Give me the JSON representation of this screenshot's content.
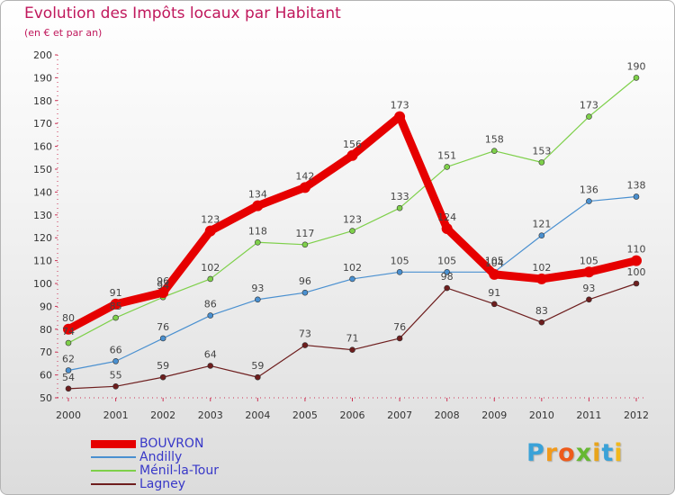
{
  "chart_data": {
    "type": "line",
    "title": "Evolution des Impôts locaux par Habitant",
    "subtitle": "(en € et par an)",
    "xlabel": "",
    "ylabel": "",
    "categories": [
      "2000",
      "2001",
      "2002",
      "2003",
      "2004",
      "2005",
      "2006",
      "2007",
      "2008",
      "2009",
      "2010",
      "2011",
      "2012"
    ],
    "ylim": [
      50,
      200
    ],
    "yticks": [
      50,
      60,
      70,
      80,
      90,
      100,
      110,
      120,
      130,
      140,
      150,
      160,
      170,
      180,
      190,
      200
    ],
    "grid": false,
    "legend_position": "bottom-left",
    "series": [
      {
        "name": "BOUVRON",
        "color": "#e60000",
        "emphasis": true,
        "values": [
          80,
          91,
          96,
          123,
          134,
          142,
          156,
          173,
          124,
          104,
          102,
          105,
          110
        ]
      },
      {
        "name": "Andilly",
        "color": "#4a90d0",
        "values": [
          62,
          66,
          76,
          86,
          93,
          96,
          102,
          105,
          105,
          105,
          121,
          136,
          138
        ]
      },
      {
        "name": "Ménil-la-Tour",
        "color": "#7ed04a",
        "values": [
          74,
          85,
          94,
          102,
          118,
          117,
          123,
          133,
          151,
          158,
          153,
          173,
          190
        ]
      },
      {
        "name": "Lagney",
        "color": "#6e1e1e",
        "values": [
          54,
          55,
          59,
          64,
          59,
          73,
          71,
          76,
          98,
          91,
          83,
          93,
          100
        ]
      }
    ]
  },
  "branding": {
    "letters": [
      "P",
      "r",
      "o",
      "x",
      "i",
      "t",
      "i"
    ],
    "colors": [
      "#3aa2d8",
      "#f29a1b",
      "#ee5a1a",
      "#66b832",
      "#e8a41c",
      "#3aa2d8",
      "#f2b81b"
    ]
  }
}
